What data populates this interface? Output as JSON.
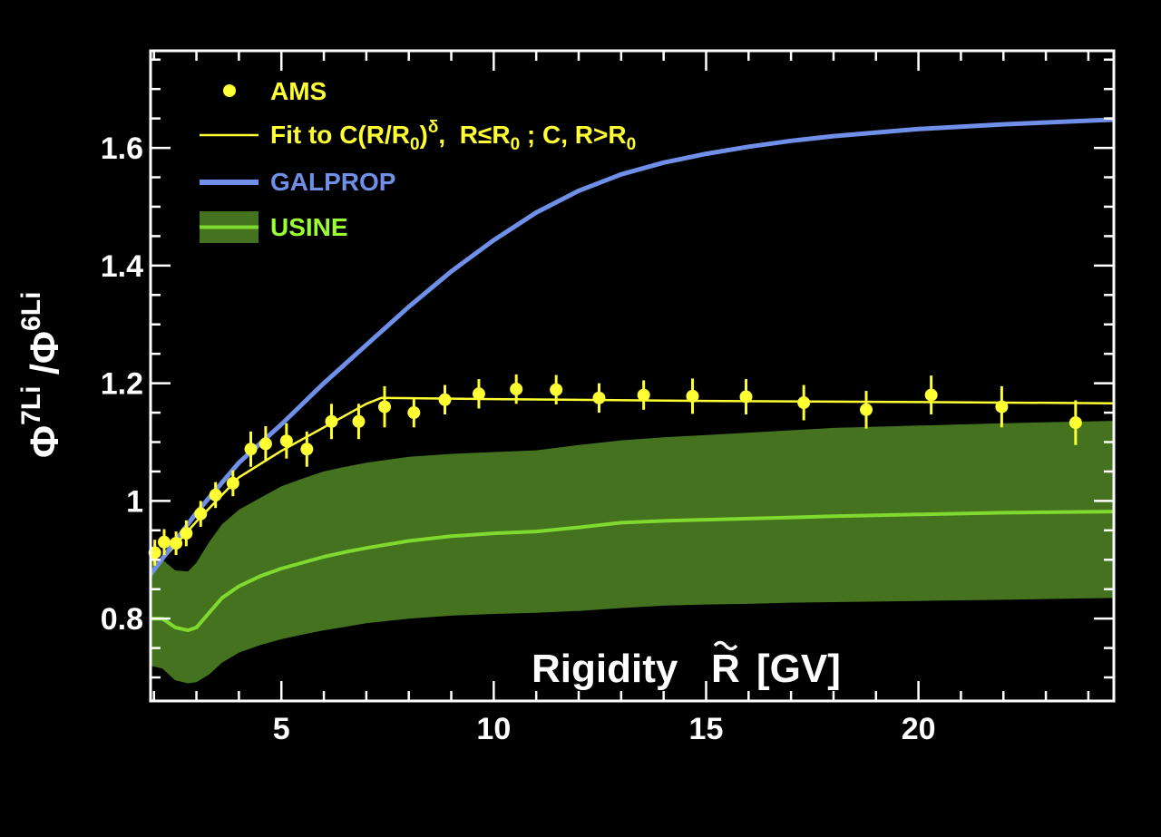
{
  "chart_data": {
    "type": "line",
    "xlabel": "Rigidity",
    "xlabel_symbol": "R",
    "xlabel_unit": "[GV]",
    "ylabel": {
      "phi1": "Φ",
      "sup1": "7",
      "li1": "Li",
      "slash": " /",
      "phi2": "Φ",
      "sup2": "6",
      "li2": "Li"
    },
    "xlim": [
      1.92,
      24.6
    ],
    "ylim": [
      0.66,
      1.765
    ],
    "xticks": [
      5,
      10,
      15,
      20
    ],
    "xtick_labels": [
      "5",
      "10",
      "15",
      "20"
    ],
    "yticks": [
      0.8,
      1.0,
      1.2,
      1.4,
      1.6
    ],
    "ytick_labels": [
      "0.8",
      "1",
      "1.2",
      "1.4",
      "1.6"
    ],
    "legend_position": "top-left",
    "legend": {
      "ams": "AMS",
      "fit_prefix": "Fit to C(R/R",
      "fit_sub1": "0",
      "fit_mid": ")",
      "fit_sup": "δ",
      "fit_after": ",  R≤R",
      "fit_sub2": "0",
      "fit_tail": " ; C, R>R",
      "fit_sub3": "0",
      "galprop": "GALPROP",
      "usine": "USINE"
    },
    "colors": {
      "background": "#000000",
      "ams": "#ffff33",
      "fit": "#ffff33",
      "galprop": "#6f8fe8",
      "usine_band": "#44721f",
      "usine_line": "#7fd92e",
      "usine_text": "#99ff33",
      "axis": "#ffffff"
    },
    "series": [
      {
        "name": "AMS",
        "kind": "points",
        "x": [
          2.02,
          2.24,
          2.52,
          2.76,
          3.1,
          3.45,
          3.86,
          4.28,
          4.63,
          5.12,
          5.6,
          6.18,
          6.82,
          7.43,
          8.12,
          8.85,
          9.65,
          10.53,
          11.47,
          12.48,
          13.53,
          14.68,
          15.94,
          17.3,
          18.77,
          20.3,
          21.96,
          23.7
        ],
        "y": [
          0.912,
          0.93,
          0.928,
          0.945,
          0.978,
          1.01,
          1.03,
          1.088,
          1.097,
          1.102,
          1.088,
          1.135,
          1.135,
          1.16,
          1.15,
          1.172,
          1.182,
          1.19,
          1.189,
          1.175,
          1.18,
          1.178,
          1.177,
          1.167,
          1.155,
          1.18,
          1.16,
          1.133
        ],
        "err": [
          0.022,
          0.022,
          0.02,
          0.022,
          0.022,
          0.022,
          0.022,
          0.03,
          0.03,
          0.03,
          0.03,
          0.03,
          0.03,
          0.035,
          0.025,
          0.025,
          0.025,
          0.025,
          0.025,
          0.025,
          0.025,
          0.03,
          0.03,
          0.03,
          0.032,
          0.033,
          0.035,
          0.038
        ]
      },
      {
        "name": "Fit to C(R/R0)δ,  R≤R0 ; C, R>R0",
        "kind": "line",
        "x": [
          1.92,
          3.0,
          4.0,
          5.0,
          6.0,
          7.0,
          7.35,
          10.0,
          15.0,
          20.0,
          24.6
        ],
        "y": [
          0.878,
          0.965,
          1.04,
          1.085,
          1.125,
          1.165,
          1.175,
          1.173,
          1.17,
          1.168,
          1.166
        ]
      },
      {
        "name": "GALPROP",
        "kind": "line",
        "x": [
          1.92,
          3.0,
          4.0,
          5.0,
          6.0,
          7.0,
          8.0,
          9.0,
          10.0,
          11.0,
          12.0,
          13.0,
          14.0,
          15.0,
          16.0,
          17.0,
          18.0,
          20.0,
          22.0,
          24.6
        ],
        "y": [
          0.875,
          0.98,
          1.065,
          1.13,
          1.2,
          1.265,
          1.33,
          1.39,
          1.443,
          1.49,
          1.527,
          1.555,
          1.575,
          1.59,
          1.602,
          1.612,
          1.62,
          1.632,
          1.64,
          1.648
        ]
      },
      {
        "name": "USINE",
        "kind": "band",
        "x": [
          1.92,
          2.2,
          2.5,
          2.8,
          3.0,
          3.3,
          3.6,
          4.0,
          4.5,
          5.0,
          5.5,
          6.0,
          6.5,
          7.0,
          8.0,
          9.0,
          10.0,
          11.0,
          12.0,
          13.0,
          14.0,
          15.0,
          16.0,
          17.0,
          18.0,
          20.0,
          22.0,
          24.6
        ],
        "lower": [
          0.72,
          0.715,
          0.695,
          0.69,
          0.692,
          0.705,
          0.725,
          0.742,
          0.755,
          0.765,
          0.773,
          0.78,
          0.786,
          0.792,
          0.8,
          0.805,
          0.808,
          0.81,
          0.813,
          0.818,
          0.822,
          0.824,
          0.825,
          0.827,
          0.828,
          0.83,
          0.832,
          0.835
        ],
        "center": [
          0.8,
          0.8,
          0.785,
          0.78,
          0.785,
          0.81,
          0.835,
          0.855,
          0.872,
          0.885,
          0.895,
          0.905,
          0.913,
          0.92,
          0.932,
          0.94,
          0.945,
          0.948,
          0.955,
          0.963,
          0.966,
          0.968,
          0.97,
          0.972,
          0.974,
          0.977,
          0.98,
          0.982
        ],
        "upper": [
          0.9,
          0.9,
          0.882,
          0.88,
          0.895,
          0.93,
          0.96,
          0.985,
          1.005,
          1.025,
          1.038,
          1.05,
          1.058,
          1.065,
          1.075,
          1.08,
          1.083,
          1.086,
          1.095,
          1.103,
          1.108,
          1.112,
          1.116,
          1.12,
          1.124,
          1.128,
          1.132,
          1.136
        ]
      }
    ]
  }
}
